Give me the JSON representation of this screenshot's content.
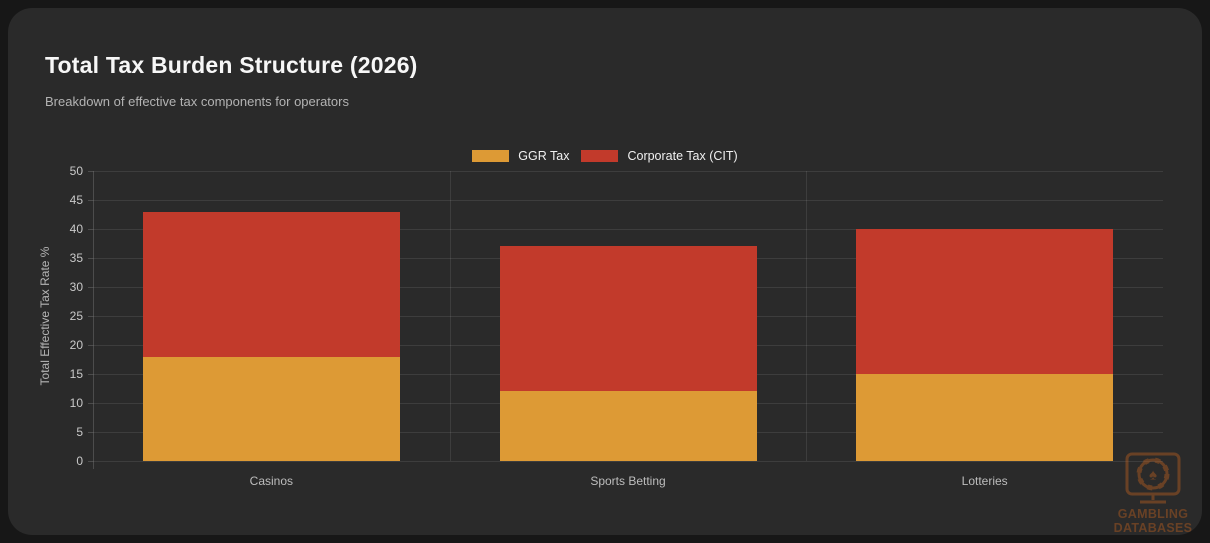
{
  "page": {
    "title": "Total Tax Burden Structure (2026)",
    "subtitle": "Breakdown of effective tax components for operators"
  },
  "watermark": {
    "logo_icon": "monitor-with-casino-chip-and-spade",
    "line1": "GAMBLING",
    "line2": "DATABASES"
  },
  "colors": {
    "background": "#171717",
    "card": "#2a2a2a",
    "ggr_tax": "#dd9a35",
    "corporate_tax": "#c23a2b",
    "watermark": "#c8641e"
  },
  "chart_data": {
    "type": "bar",
    "stacked": true,
    "title": "Total Tax Burden Structure (2026)",
    "subtitle": "Breakdown of effective tax components for operators",
    "categories": [
      "Casinos",
      "Sports Betting",
      "Lotteries"
    ],
    "series": [
      {
        "name": "GGR Tax",
        "color": "#dd9a35",
        "values": [
          18,
          12,
          15
        ]
      },
      {
        "name": "Corporate Tax (CIT)",
        "color": "#c23a2b",
        "values": [
          25,
          25,
          25
        ]
      }
    ],
    "totals": [
      43,
      37,
      40
    ],
    "xlabel": "",
    "ylabel": "Total Effective Tax Rate %",
    "ylim": [
      0,
      50
    ],
    "ytick_step": 5,
    "grid": true,
    "legend_position": "top-center"
  }
}
